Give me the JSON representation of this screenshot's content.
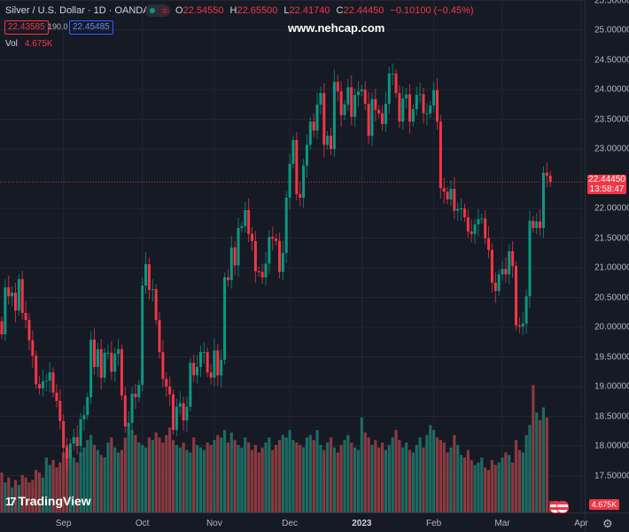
{
  "header": {
    "title": "Silver / U.S. Dollar · 1D · OANDA",
    "ohlc": {
      "o_label": "O",
      "o": "22.54550",
      "h_label": "H",
      "h": "22.65500",
      "l_label": "L",
      "l": "22.41740",
      "c_label": "C",
      "c": "22.44450",
      "change": "−0.10100 (−0.45%)"
    },
    "sell_price": "22.43585",
    "spread": "190.0",
    "buy_price": "22.45485",
    "vol_label": "Vol",
    "vol_value": "4.675K",
    "toggle_icon": "="
  },
  "watermark": "www.nehcap.com",
  "price_tag": {
    "price": "22.44450",
    "countdown": "13:58:47"
  },
  "volume_tag": "4.675K",
  "logo": {
    "text": "TradingView",
    "mark": "17"
  },
  "settings_icon": "gear-icon",
  "colors": {
    "bg": "#161a25",
    "grid": "#232632",
    "up": "#089981",
    "down": "#f23645",
    "up_vol": "#1d6b62",
    "down_vol": "#8b3a40"
  },
  "chart_data": {
    "type": "candlestick",
    "title": "Silver / U.S. Dollar · 1D · OANDA",
    "ylim": [
      17.0,
      25.5
    ],
    "yticks": [
      "25.50000",
      "25.00000",
      "24.50000",
      "24.00000",
      "23.50000",
      "23.00000",
      "22.00000",
      "21.50000",
      "21.00000",
      "20.50000",
      "20.00000",
      "19.50000",
      "19.00000",
      "18.50000",
      "18.00000",
      "17.50000"
    ],
    "ytick_values": [
      25.5,
      25.0,
      24.5,
      24.0,
      23.5,
      23.0,
      22.0,
      21.5,
      21.0,
      20.5,
      20.0,
      19.5,
      19.0,
      18.5,
      18.0,
      17.5
    ],
    "xticks": [
      {
        "label": "Sep",
        "index": 18,
        "bold": false
      },
      {
        "label": "Oct",
        "index": 41,
        "bold": false
      },
      {
        "label": "Nov",
        "index": 62,
        "bold": false
      },
      {
        "label": "Dec",
        "index": 84,
        "bold": false
      },
      {
        "label": "2023",
        "index": 105,
        "bold": true
      },
      {
        "label": "Feb",
        "index": 126,
        "bold": false
      },
      {
        "label": "Mar",
        "index": 146,
        "bold": false
      },
      {
        "label": "Apr",
        "index": 169,
        "bold": false
      }
    ],
    "last_close": 22.4445,
    "first_open": 20.1,
    "close": [
      19.88,
      20.67,
      20.52,
      20.58,
      20.28,
      20.81,
      20.24,
      20.12,
      19.78,
      19.52,
      19.04,
      18.97,
      19.09,
      19.1,
      19.24,
      18.9,
      18.76,
      18.42,
      17.97,
      17.79,
      18.04,
      18.15,
      18.0,
      18.45,
      18.52,
      18.82,
      19.79,
      19.33,
      19.63,
      19.15,
      19.57,
      19.57,
      19.25,
      19.55,
      19.63,
      18.85,
      18.33,
      18.39,
      18.88,
      18.82,
      19.03,
      20.7,
      21.06,
      20.63,
      20.64,
      20.12,
      19.58,
      19.13,
      19.0,
      18.87,
      18.27,
      18.66,
      18.72,
      18.43,
      18.66,
      19.4,
      19.19,
      19.33,
      19.58,
      19.58,
      19.24,
      19.15,
      19.61,
      19.19,
      19.45,
      20.84,
      20.79,
      21.34,
      21.04,
      21.67,
      21.7,
      21.97,
      21.57,
      21.45,
      20.94,
      20.93,
      20.84,
      21.07,
      21.52,
      21.49,
      21.45,
      20.93,
      21.25,
      22.18,
      22.75,
      23.15,
      22.24,
      22.18,
      22.72,
      23.07,
      23.46,
      23.31,
      23.75,
      23.94,
      23.07,
      23.22,
      23.0,
      24.13,
      23.97,
      23.57,
      23.75,
      24.04,
      23.54,
      23.91,
      23.97,
      24.0,
      23.76,
      23.22,
      23.84,
      23.66,
      23.6,
      23.42,
      23.76,
      24.27,
      24.27,
      23.94,
      23.46,
      23.85,
      23.92,
      23.46,
      23.67,
      23.91,
      23.92,
      23.6,
      23.6,
      23.73,
      23.99,
      23.46,
      22.34,
      22.28,
      22.15,
      22.33,
      21.96,
      21.99,
      22.0,
      21.85,
      21.61,
      21.57,
      21.73,
      21.82,
      21.83,
      21.5,
      21.3,
      20.75,
      20.61,
      20.89,
      20.98,
      20.89,
      21.28,
      21.03,
      20.03,
      20.01,
      20.06,
      20.52,
      21.79,
      21.67,
      21.78,
      21.67,
      22.6,
      22.55,
      22.4445
    ],
    "volume_k": [
      16,
      12,
      14,
      10,
      13,
      11,
      15,
      14,
      12,
      13,
      17,
      16,
      14,
      22,
      19,
      21,
      18,
      20,
      24,
      27,
      25,
      22,
      20,
      24,
      26,
      29,
      31,
      27,
      25,
      23,
      22,
      28,
      30,
      26,
      24,
      25,
      30,
      35,
      33,
      31,
      28,
      27,
      26,
      30,
      29,
      32,
      30,
      28,
      31,
      34,
      29,
      27,
      26,
      28,
      25,
      24,
      30,
      27,
      26,
      25,
      28,
      27,
      29,
      31,
      30,
      33,
      28,
      32,
      29,
      27,
      26,
      30,
      28,
      25,
      27,
      24,
      26,
      28,
      30,
      25,
      27,
      29,
      31,
      30,
      33,
      29,
      28,
      27,
      26,
      30,
      31,
      29,
      33,
      27,
      25,
      28,
      30,
      26,
      24,
      27,
      29,
      31,
      28,
      26,
      25,
      38,
      32,
      30,
      27,
      29,
      26,
      28,
      25,
      27,
      30,
      33,
      29,
      26,
      28,
      25,
      24,
      27,
      30,
      26,
      31,
      35,
      33,
      30,
      29,
      28,
      24,
      26,
      31,
      27,
      23,
      22,
      25,
      21,
      19,
      20,
      22,
      18,
      17,
      21,
      19,
      20,
      22,
      24,
      23,
      20,
      29,
      25,
      24,
      31,
      35,
      51,
      40,
      37,
      42,
      38,
      4.675
    ]
  }
}
